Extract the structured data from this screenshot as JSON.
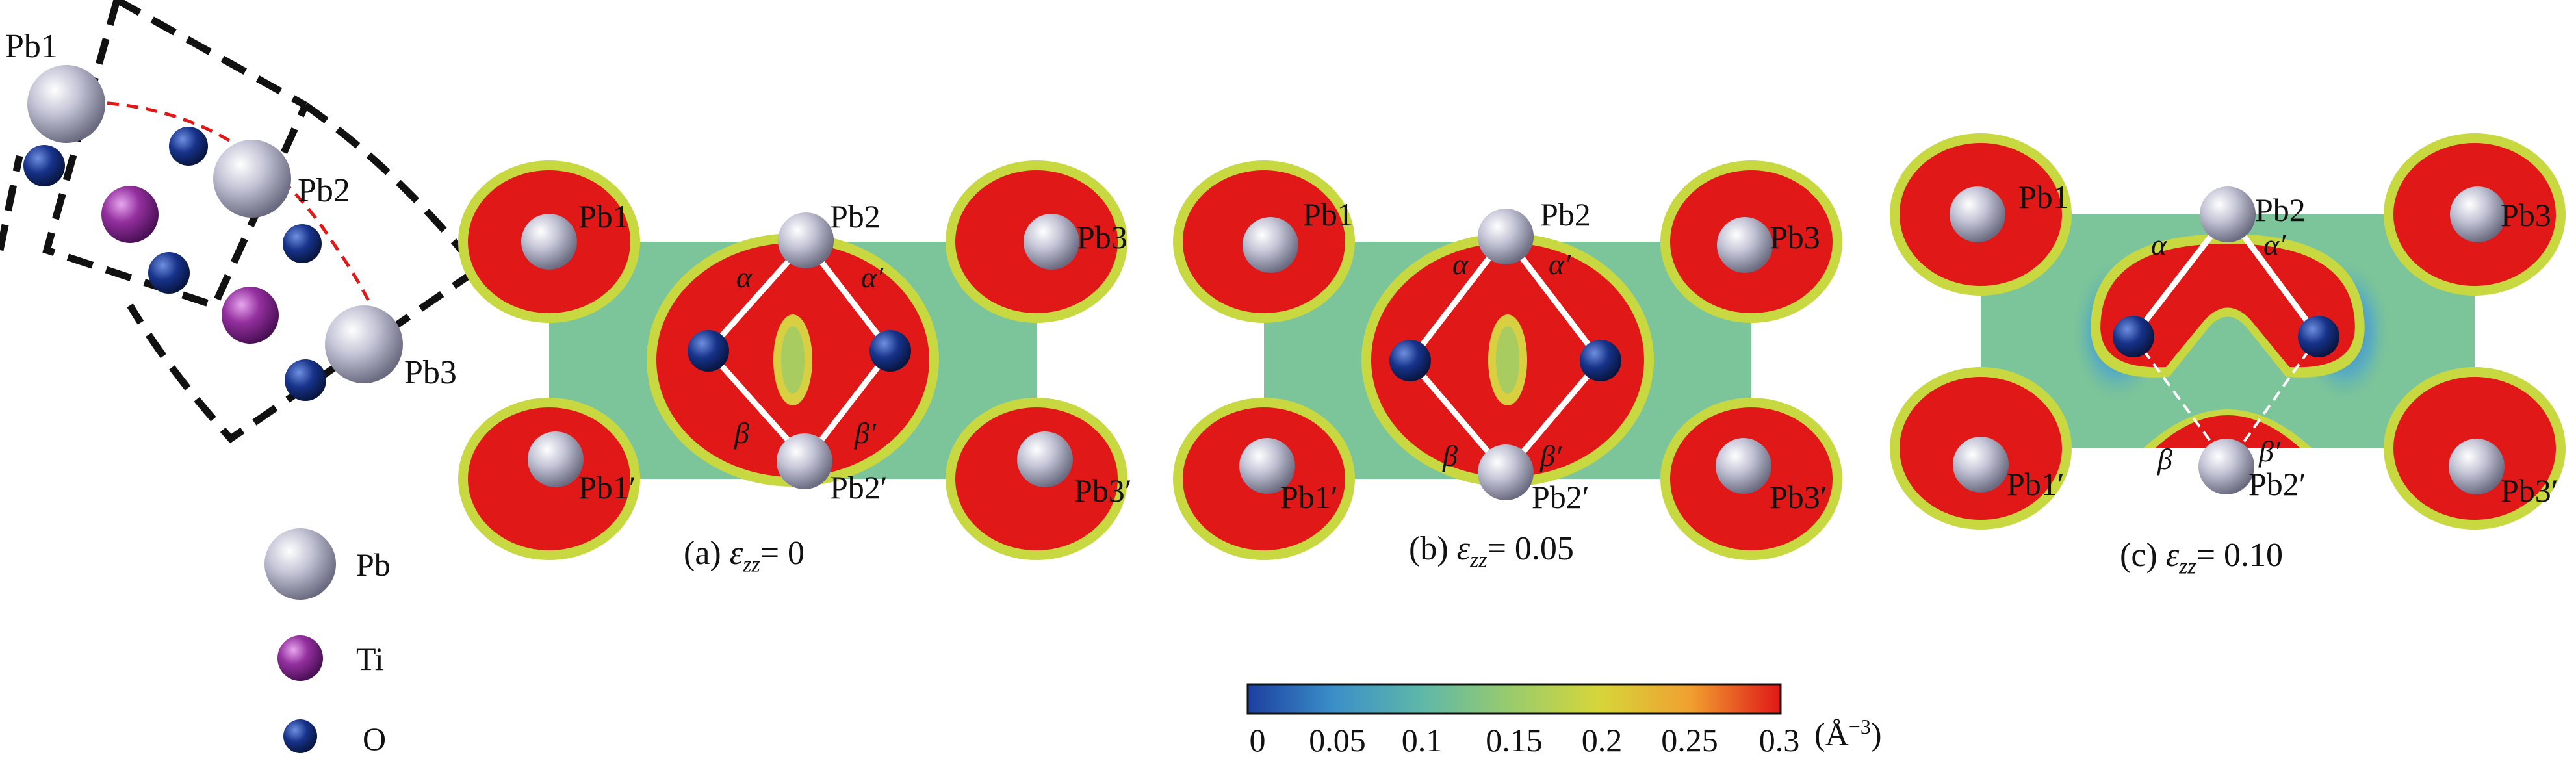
{
  "inset": {
    "atom_labels": [
      "Pb1",
      "Pb2",
      "Pb3"
    ]
  },
  "legend": {
    "items": [
      {
        "label": "Pb",
        "color": "#b8b8d0"
      },
      {
        "label": "Ti",
        "color": "#8a2a9a"
      },
      {
        "label": "O",
        "color": "#12307a"
      }
    ]
  },
  "panels": [
    {
      "id": "a",
      "caption_prefix": "(a) ",
      "symbol": "ε",
      "subscript": "zz",
      "caption_value": "= 0",
      "labels": {
        "pb1": "Pb1",
        "pb2": "Pb2",
        "pb3": "Pb3",
        "pb1p": "Pb1′",
        "pb2p": "Pb2′",
        "pb3p": "Pb3′",
        "alpha": "α",
        "alphap": "α′",
        "beta": "β",
        "betap": "β′"
      }
    },
    {
      "id": "b",
      "caption_prefix": "(b) ",
      "symbol": "ε",
      "subscript": "zz",
      "caption_value": "= 0.05",
      "labels": {
        "pb1": "Pb1",
        "pb2": "Pb2",
        "pb3": "Pb3",
        "pb1p": "Pb1′",
        "pb2p": "Pb2′",
        "pb3p": "Pb3′",
        "alpha": "α",
        "alphap": "α′",
        "beta": "β",
        "betap": "β′"
      }
    },
    {
      "id": "c",
      "caption_prefix": "(c) ",
      "symbol": "ε",
      "subscript": "zz",
      "caption_value": "= 0.10",
      "labels": {
        "pb1": "Pb1",
        "pb2": "Pb2",
        "pb3": "Pb3",
        "pb1p": "Pb1′",
        "pb2p": "Pb2′",
        "pb3p": "Pb3′",
        "alpha": "α",
        "alphap": "α′",
        "beta": "β",
        "betap": "β′"
      }
    }
  ],
  "colorbar": {
    "ticks": [
      "0",
      "0.05",
      "0.1",
      "0.15",
      "0.2",
      "0.25",
      "0.3"
    ],
    "unit_base": "(Å",
    "unit_sup": "−3",
    "unit_close": ")",
    "colors": [
      "#1d3fa0",
      "#3a8fc8",
      "#5fb8a8",
      "#9ccc6a",
      "#d6d63a",
      "#f0a030",
      "#e01818"
    ]
  }
}
